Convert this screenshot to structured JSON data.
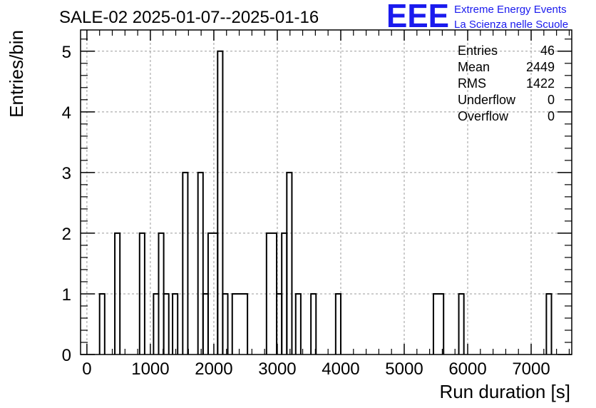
{
  "header": {
    "title": "SALE-02 2025-01-07--2025-01-16",
    "logo_text": "EEE",
    "logo_line1": "Extreme Energy Events",
    "logo_line2": "La Scienza nelle Scuole"
  },
  "stats": [
    {
      "label": "Entries",
      "value": "46"
    },
    {
      "label": "Mean",
      "value": "2449"
    },
    {
      "label": "RMS",
      "value": "1422"
    },
    {
      "label": "Underflow",
      "value": "0"
    },
    {
      "label": "Overflow",
      "value": "0"
    }
  ],
  "colors": {
    "logo": "#1a1aee",
    "line": "#000000",
    "grid": "#9a9a9a"
  },
  "chart_data": {
    "type": "histogram",
    "xlabel": "Run duration [s]",
    "ylabel": "Entries/bin",
    "xlim": [
      -100,
      7640
    ],
    "ylim": [
      0,
      5.35
    ],
    "grid": true,
    "x_ticks": [
      0,
      1000,
      2000,
      3000,
      4000,
      5000,
      6000,
      7000
    ],
    "y_ticks": [
      0,
      1,
      2,
      3,
      4,
      5
    ],
    "bins": [
      {
        "x0": 200,
        "x1": 280,
        "y": 1
      },
      {
        "x0": 440,
        "x1": 520,
        "y": 2
      },
      {
        "x0": 830,
        "x1": 910,
        "y": 2
      },
      {
        "x0": 1050,
        "x1": 1130,
        "y": 1
      },
      {
        "x0": 1130,
        "x1": 1210,
        "y": 2
      },
      {
        "x0": 1210,
        "x1": 1290,
        "y": 1
      },
      {
        "x0": 1350,
        "x1": 1430,
        "y": 1
      },
      {
        "x0": 1510,
        "x1": 1590,
        "y": 3
      },
      {
        "x0": 1750,
        "x1": 1830,
        "y": 3
      },
      {
        "x0": 1830,
        "x1": 1910,
        "y": 1
      },
      {
        "x0": 1910,
        "x1": 2060,
        "y": 2
      },
      {
        "x0": 2060,
        "x1": 2140,
        "y": 5
      },
      {
        "x0": 2140,
        "x1": 2220,
        "y": 1
      },
      {
        "x0": 2290,
        "x1": 2530,
        "y": 1
      },
      {
        "x0": 2830,
        "x1": 2990,
        "y": 2
      },
      {
        "x0": 2990,
        "x1": 3070,
        "y": 1
      },
      {
        "x0": 3070,
        "x1": 3150,
        "y": 2
      },
      {
        "x0": 3150,
        "x1": 3230,
        "y": 3
      },
      {
        "x0": 3290,
        "x1": 3370,
        "y": 1
      },
      {
        "x0": 3530,
        "x1": 3610,
        "y": 1
      },
      {
        "x0": 3920,
        "x1": 4000,
        "y": 1
      },
      {
        "x0": 5460,
        "x1": 5620,
        "y": 1
      },
      {
        "x0": 5860,
        "x1": 5940,
        "y": 1
      },
      {
        "x0": 7240,
        "x1": 7320,
        "y": 1
      }
    ]
  }
}
